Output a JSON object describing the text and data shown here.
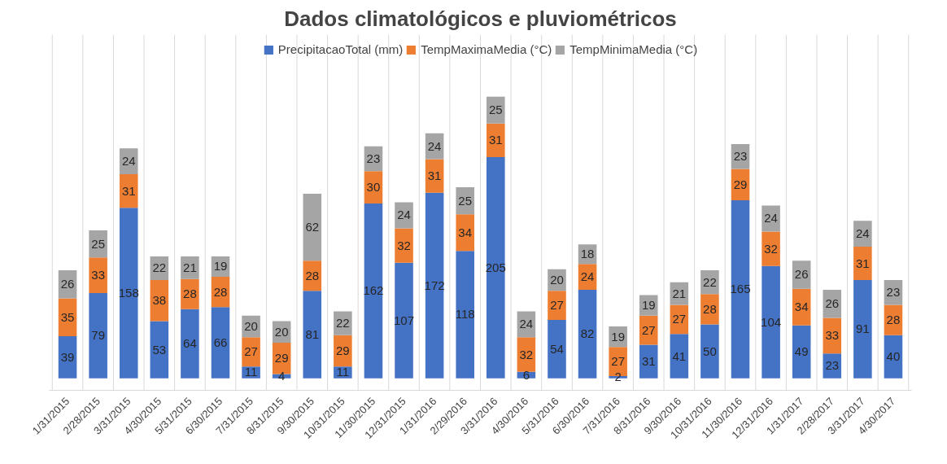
{
  "chart_data": {
    "type": "bar",
    "title": "Dados climatológicos e pluviométricos",
    "stacked": true,
    "data_labels": true,
    "legend": "top",
    "grid": "x",
    "tick_labels": "x",
    "categories": [
      "1/31/2015",
      "2/28/2015",
      "3/31/2015",
      "4/30/2015",
      "5/31/2015",
      "6/30/2015",
      "7/31/2015",
      "8/31/2015",
      "9/30/2015",
      "10/31/2015",
      "11/30/2015",
      "12/31/2015",
      "1/31/2016",
      "2/29/2016",
      "3/31/2016",
      "4/30/2016",
      "5/31/2016",
      "6/30/2016",
      "7/31/2016",
      "8/31/2016",
      "9/30/2016",
      "10/31/2016",
      "11/30/2016",
      "12/31/2016",
      "1/31/2017",
      "2/28/2017",
      "3/31/2017",
      "4/30/2017"
    ],
    "series": [
      {
        "name": "PrecipitacaoTotal (mm)",
        "color": "#4472c4",
        "values": [
          39,
          79,
          158,
          53,
          64,
          66,
          11,
          4,
          81,
          11,
          162,
          107,
          172,
          118,
          205,
          6,
          54,
          82,
          2,
          31,
          41,
          50,
          165,
          104,
          49,
          23,
          91,
          40
        ]
      },
      {
        "name": "TempMaximaMedia (°C)",
        "color": "#ed7d31",
        "values": [
          35,
          33,
          31,
          38,
          28,
          28,
          27,
          29,
          28,
          29,
          30,
          32,
          31,
          34,
          31,
          32,
          27,
          24,
          27,
          27,
          27,
          28,
          29,
          32,
          34,
          33,
          31,
          28
        ]
      },
      {
        "name": "TempMinimaMedia (°C)",
        "color": "#a5a5a5",
        "values": [
          26,
          25,
          24,
          22,
          21,
          19,
          20,
          20,
          62,
          22,
          23,
          24,
          24,
          25,
          25,
          24,
          20,
          18,
          19,
          19,
          21,
          22,
          23,
          24,
          26,
          26,
          24,
          23
        ]
      }
    ]
  }
}
